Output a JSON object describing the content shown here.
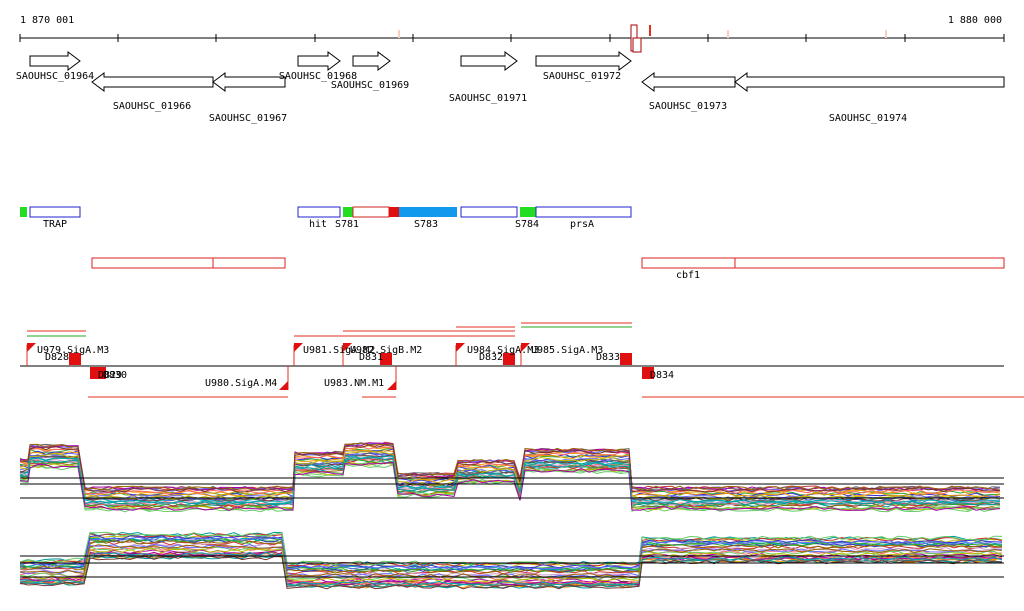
{
  "ruler": {
    "start_label": "1 870 001",
    "end_label": "1 880 000"
  },
  "genes": [
    {
      "label": "SAOUHSC_01964"
    },
    {
      "label": "SAOUHSC_01966"
    },
    {
      "label": "SAOUHSC_01967"
    },
    {
      "label": "SAOUHSC_01968"
    },
    {
      "label": "SAOUHSC_01969"
    },
    {
      "label": "SAOUHSC_01971"
    },
    {
      "label": "SAOUHSC_01972"
    },
    {
      "label": "SAOUHSC_01973"
    },
    {
      "label": "SAOUHSC_01974"
    }
  ],
  "features": [
    {
      "label": "TRAP"
    },
    {
      "label": "hit"
    },
    {
      "label": "S781"
    },
    {
      "label": "S783"
    },
    {
      "label": "S784"
    },
    {
      "label": "prsA"
    }
  ],
  "operons": [
    {
      "label": "cbf1"
    }
  ],
  "transcripts": [
    {
      "label": "U979.SigA.M3"
    },
    {
      "label": "D828"
    },
    {
      "label": "D829"
    },
    {
      "label": "D830"
    },
    {
      "label": "U980.SigA.M4"
    },
    {
      "label": "U981.SigA.M2"
    },
    {
      "label": "U982.SigB.M2"
    },
    {
      "label": "D831"
    },
    {
      "label": "U983.NM.M1"
    },
    {
      "label": "U984.SigA.M3"
    },
    {
      "label": "D832"
    },
    {
      "label": "U985.SigA.M3"
    },
    {
      "label": "D833"
    },
    {
      "label": "D834"
    }
  ]
}
